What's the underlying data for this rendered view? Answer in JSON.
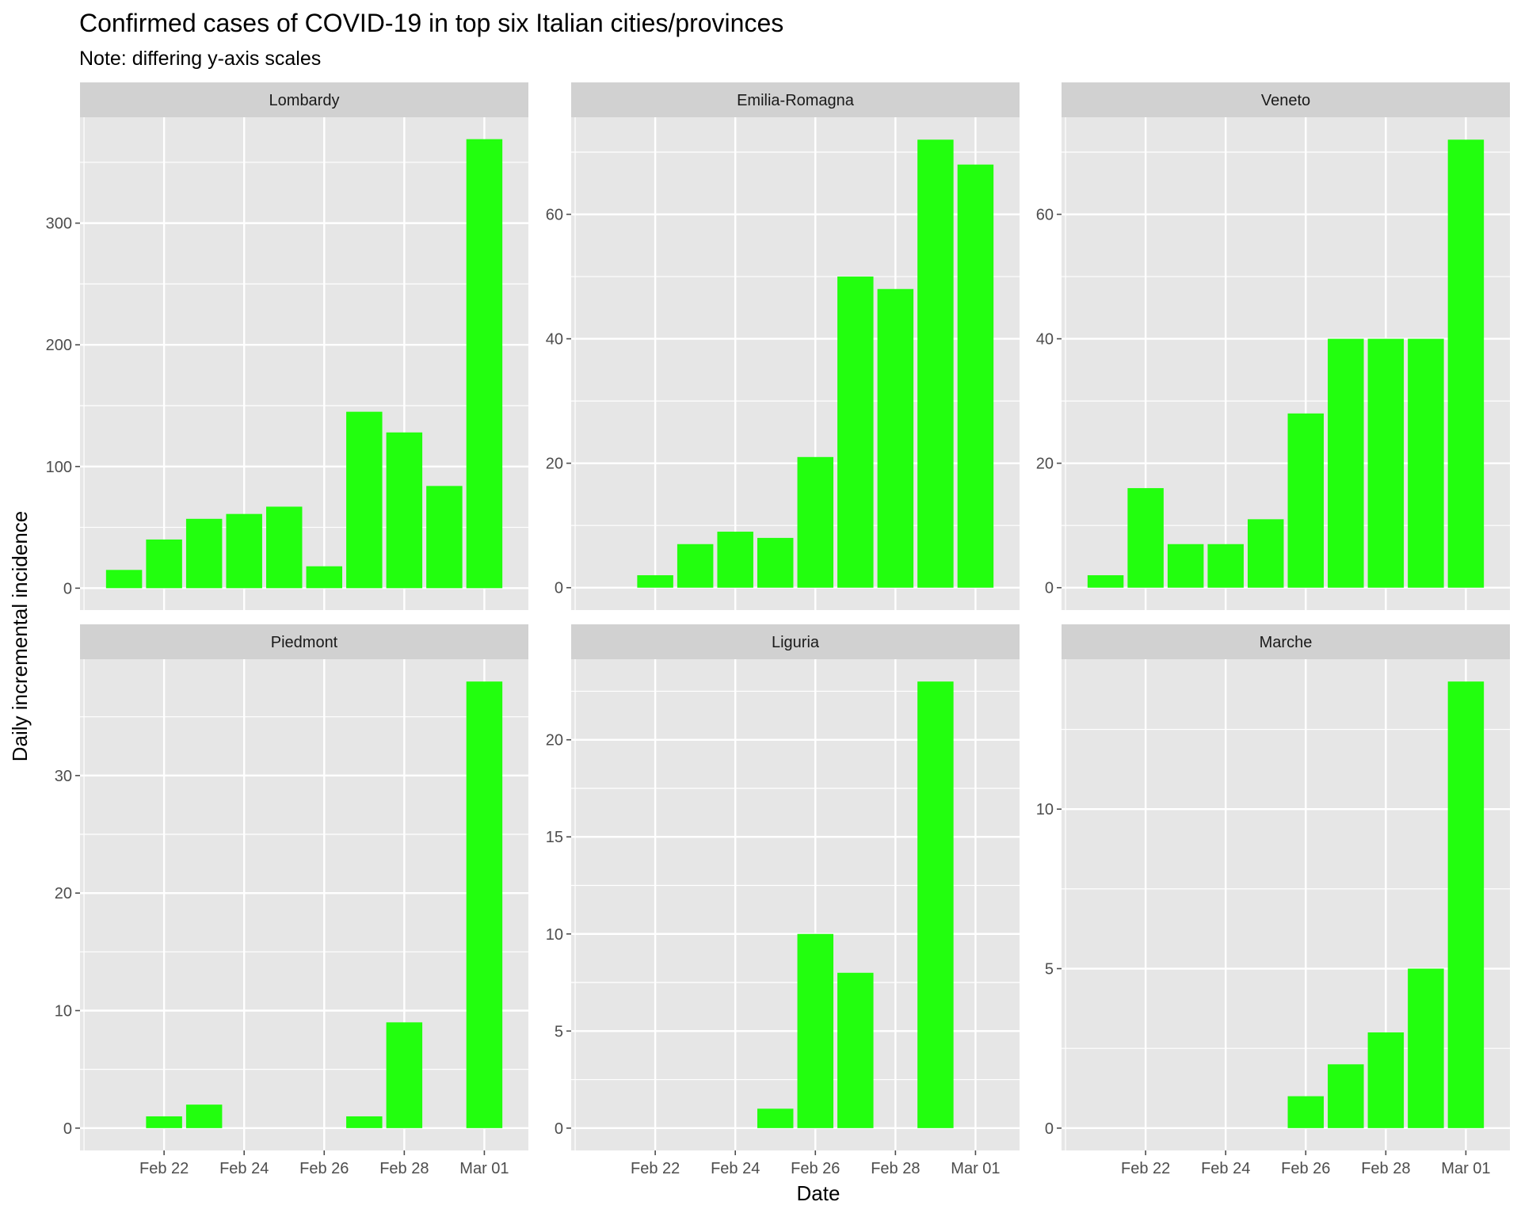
{
  "title": "Confirmed cases of COVID-19 in top six Italian cities/provinces",
  "subtitle": "Note: differing y-axis scales",
  "xlabel": "Date",
  "ylabel": "Daily incremental incidence",
  "colors": {
    "bar": "#22FF0E",
    "panel_bg": "#E6E6E6",
    "strip_bg": "#D1D1D1",
    "grid": "#FFFFFF",
    "tick": "#4D4D4D"
  },
  "chart_data": {
    "type": "bar",
    "layout": "facet-grid 2x3",
    "x": [
      "2020-02-21",
      "2020-02-22",
      "2020-02-23",
      "2020-02-24",
      "2020-02-25",
      "2020-02-26",
      "2020-02-27",
      "2020-02-28",
      "2020-02-29",
      "2020-03-01"
    ],
    "x_tick_labels": [
      "Feb 22",
      "Feb 24",
      "Feb 26",
      "Feb 28",
      "Mar 01"
    ],
    "x_tick_dates": [
      "2020-02-22",
      "2020-02-24",
      "2020-02-26",
      "2020-02-28",
      "2020-03-01"
    ],
    "grid": true,
    "legend": "none",
    "panels": [
      {
        "name": "Lombardy",
        "values": [
          15,
          40,
          57,
          61,
          67,
          18,
          145,
          128,
          84,
          369
        ],
        "ylim": [
          -18,
          387
        ],
        "yticks": [
          0,
          100,
          200,
          300
        ]
      },
      {
        "name": "Emilia-Romagna",
        "values": [
          0,
          2,
          7,
          9,
          8,
          21,
          50,
          48,
          72,
          68
        ],
        "ylim": [
          -3.6,
          75.6
        ],
        "yticks": [
          0,
          20,
          40,
          60
        ]
      },
      {
        "name": "Veneto",
        "values": [
          2,
          16,
          7,
          7,
          11,
          28,
          40,
          40,
          40,
          72
        ],
        "ylim": [
          -3.6,
          75.6
        ],
        "yticks": [
          0,
          20,
          40,
          60
        ]
      },
      {
        "name": "Piedmont",
        "values": [
          0,
          1,
          2,
          0,
          0,
          0,
          1,
          9,
          0,
          38
        ],
        "ylim": [
          -1.9,
          39.9
        ],
        "yticks": [
          0,
          10,
          20,
          30
        ]
      },
      {
        "name": "Liguria",
        "values": [
          0,
          0,
          0,
          0,
          1,
          10,
          8,
          0,
          23,
          0
        ],
        "ylim": [
          -1.15,
          24.15
        ],
        "yticks": [
          0,
          5,
          10,
          15,
          20
        ]
      },
      {
        "name": "Marche",
        "values": [
          0,
          0,
          0,
          0,
          0,
          1,
          2,
          3,
          5,
          14
        ],
        "ylim": [
          -0.7,
          14.7
        ],
        "yticks": [
          0,
          5,
          10
        ]
      }
    ]
  }
}
